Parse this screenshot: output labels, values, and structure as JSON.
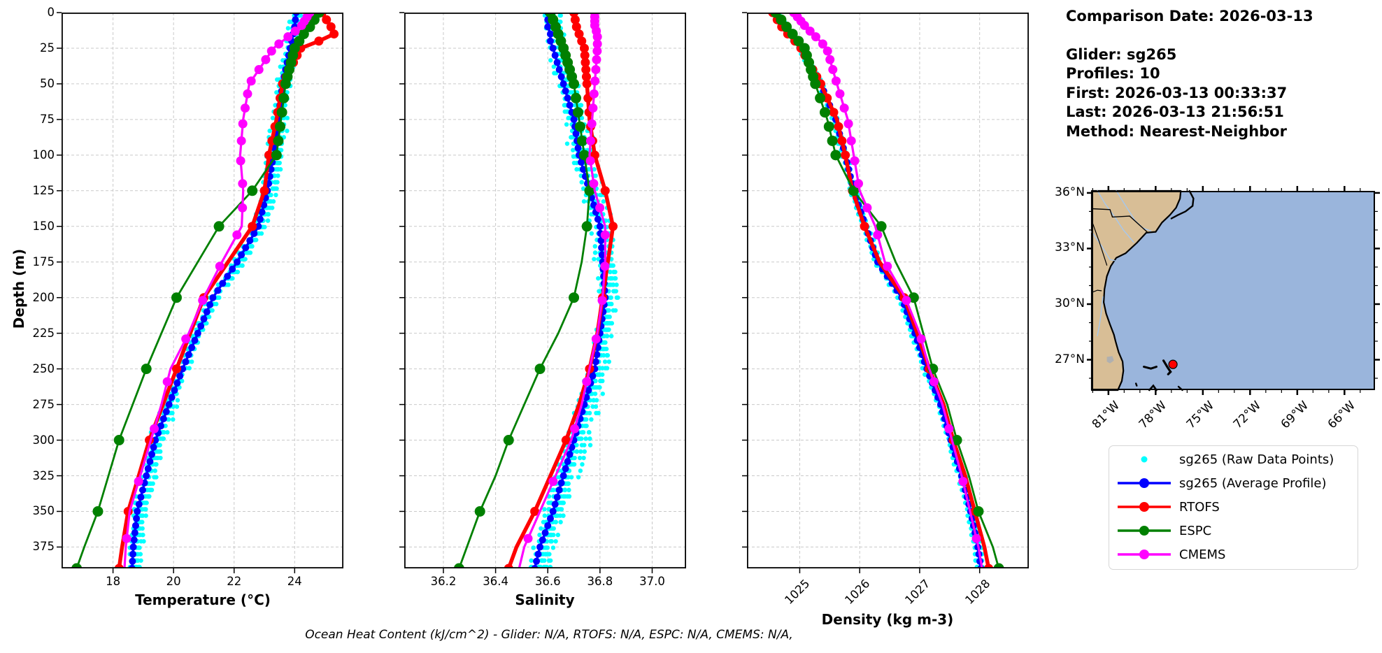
{
  "info": {
    "title": "Comparison Date: 2026-03-13",
    "lines": [
      "Glider: sg265",
      "Profiles: 10",
      "First: 2026-03-13 00:33:37",
      "Last: 2026-03-13 21:56:51",
      "Method: Nearest-Neighbor"
    ]
  },
  "footer": "Ocean Heat Content (kJ/cm^2) - Glider: N/A,  RTOFS: N/A,  ESPC: N/A,  CMEMS: N/A,",
  "legend": {
    "items": [
      {
        "label": "sg265 (Raw Data Points)",
        "color": "#00ffff",
        "line": false,
        "marker_r": 4.5
      },
      {
        "label": "sg265 (Average Profile)",
        "color": "#0000ff",
        "line": true,
        "marker_r": 7
      },
      {
        "label": "RTOFS",
        "color": "#ff0000",
        "line": true,
        "marker_r": 7
      },
      {
        "label": "ESPC",
        "color": "#008000",
        "line": true,
        "marker_r": 7
      },
      {
        "label": "CMEMS",
        "color": "#ff00ff",
        "line": true,
        "marker_r": 7
      }
    ]
  },
  "map": {
    "lat_ticks": [
      {
        "v": 36,
        "label": "36°N"
      },
      {
        "v": 33,
        "label": "33°N"
      },
      {
        "v": 30,
        "label": "30°N"
      },
      {
        "v": 27,
        "label": "27°N"
      }
    ],
    "lon_ticks": [
      {
        "v": -81,
        "label": "81°W"
      },
      {
        "v": -78,
        "label": "78°W"
      },
      {
        "v": -75,
        "label": "75°W"
      },
      {
        "v": -72,
        "label": "72°W"
      },
      {
        "v": -69,
        "label": "69°W"
      },
      {
        "v": -66,
        "label": "66°W"
      }
    ],
    "lon_lim": [
      -82.06,
      -64.06
    ],
    "lat_lim": [
      25.36,
      36.11
    ],
    "marker": {
      "lon": -76.9,
      "lat": 26.75,
      "color": "#ff0000"
    },
    "land_color": "#d8be96",
    "ocean_color": "#9ab5dc",
    "river_color": "#a6c8ee",
    "lake_color": "#b0b0b0"
  },
  "chart_data": {
    "type": "line",
    "subtype": "vertical-profiles",
    "grid": true,
    "depth_axis": {
      "label": "Depth (m)",
      "lim": [
        0,
        390
      ],
      "ticks": [
        0,
        25,
        50,
        75,
        100,
        125,
        150,
        175,
        200,
        225,
        250,
        275,
        300,
        325,
        350,
        375
      ]
    },
    "series_meta": [
      {
        "id": "raw",
        "name": "sg265 (Raw Data Points)",
        "color": "#00ffff",
        "style": "scatter"
      },
      {
        "id": "avg",
        "name": "sg265 (Average Profile)",
        "color": "#0000ff",
        "style": "line-markers",
        "line_w": 3.5,
        "marker_r": 5,
        "marker_step": 5
      },
      {
        "id": "rtofs",
        "name": "RTOFS",
        "color": "#ff0000",
        "style": "line-markers",
        "line_w": 5.5,
        "marker_r": 6.5,
        "marker_depths": [
          0,
          5,
          10,
          15,
          20,
          25,
          30,
          35,
          40,
          45,
          50,
          60,
          70,
          80,
          90,
          100,
          125,
          150,
          200,
          250,
          300,
          350,
          390
        ]
      },
      {
        "id": "espc",
        "name": "ESPC",
        "color": "#008000",
        "style": "line-markers",
        "line_w": 2.8,
        "marker_r": 7.5,
        "marker_depths": [
          0,
          5,
          10,
          15,
          20,
          25,
          30,
          35,
          40,
          45,
          50,
          60,
          70,
          80,
          90,
          100,
          125,
          150,
          200,
          250,
          300,
          350,
          390
        ]
      },
      {
        "id": "cmems",
        "name": "CMEMS",
        "color": "#ff00ff",
        "style": "line-markers",
        "line_w": 3.2,
        "marker_r": 6.5,
        "marker_depths": [
          0,
          3,
          6,
          9,
          13,
          17,
          22,
          27,
          33,
          40,
          48,
          57,
          67,
          78,
          90,
          104,
          120,
          137,
          156,
          178,
          202,
          229,
          259,
          292,
          329,
          369
        ]
      }
    ],
    "depths": [
      0,
      10,
      15,
      20,
      25,
      50,
      75,
      100,
      125,
      150,
      175,
      200,
      225,
      250,
      275,
      300,
      325,
      350,
      375,
      390
    ],
    "panels": [
      {
        "id": "temperature",
        "xlabel": "Temperature (°C)",
        "xlim": [
          16.3,
          25.61
        ],
        "xticks": [
          18,
          20,
          22,
          24
        ],
        "xtick_labels": [
          "18",
          "20",
          "22",
          "24"
        ],
        "rotate_xticks": false,
        "values": {
          "avg": [
            24.05,
            24.0,
            23.95,
            23.9,
            23.85,
            23.6,
            23.45,
            23.3,
            23.1,
            22.8,
            22.1,
            21.3,
            20.8,
            20.3,
            19.85,
            19.4,
            19.1,
            18.8,
            18.67,
            18.63
          ],
          "rtofs": [
            24.9,
            25.2,
            25.3,
            24.8,
            24.2,
            23.6,
            23.4,
            23.15,
            23.0,
            22.6,
            21.8,
            21.0,
            20.55,
            20.1,
            19.65,
            19.2,
            18.85,
            18.5,
            18.3,
            18.2
          ],
          "espc": [
            24.8,
            24.5,
            24.3,
            24.15,
            24.0,
            23.7,
            23.55,
            23.4,
            22.6,
            21.5,
            20.8,
            20.1,
            19.6,
            19.1,
            18.65,
            18.2,
            17.85,
            17.5,
            17.05,
            16.8
          ],
          "cmems": [
            24.5,
            24.2,
            23.9,
            23.6,
            23.3,
            22.5,
            22.3,
            22.2,
            22.3,
            22.25,
            21.6,
            21.0,
            20.5,
            19.9,
            19.6,
            19.25,
            18.9,
            18.55,
            18.42,
            18.38
          ]
        },
        "raw_scatter": {
          "profiles": 10,
          "spread": 0.3,
          "bias": 0.06
        }
      },
      {
        "id": "salinity",
        "xlabel": "Salinity",
        "xlim": [
          36.05,
          37.13
        ],
        "xticks": [
          36.2,
          36.4,
          36.6,
          36.8,
          37.0
        ],
        "xtick_labels": [
          "36.2",
          "36.4",
          "36.6",
          "36.8",
          "37.0"
        ],
        "rotate_xticks": false,
        "values": {
          "avg": [
            36.6,
            36.6,
            36.61,
            36.61,
            36.62,
            36.66,
            36.7,
            36.72,
            36.76,
            36.8,
            36.81,
            36.82,
            36.8,
            36.78,
            36.74,
            36.7,
            36.66,
            36.62,
            36.57,
            36.55
          ],
          "rtofs": [
            36.7,
            36.71,
            36.72,
            36.73,
            36.74,
            36.75,
            36.76,
            36.78,
            36.82,
            36.85,
            36.83,
            36.81,
            36.79,
            36.76,
            36.72,
            36.67,
            36.61,
            36.55,
            36.48,
            36.45
          ],
          "espc": [
            36.61,
            36.63,
            36.64,
            36.65,
            36.66,
            36.7,
            36.72,
            36.74,
            36.76,
            36.75,
            36.73,
            36.7,
            36.64,
            36.57,
            36.51,
            36.45,
            36.4,
            36.34,
            36.29,
            36.26
          ],
          "cmems": [
            36.78,
            36.78,
            36.79,
            36.79,
            36.79,
            36.78,
            36.77,
            36.76,
            36.78,
            36.82,
            36.82,
            36.81,
            36.79,
            36.76,
            36.73,
            36.69,
            36.63,
            36.57,
            36.51,
            36.49
          ]
        },
        "raw_scatter": {
          "profiles": 10,
          "spread": 0.055,
          "bias": 0.015
        }
      },
      {
        "id": "density",
        "xlabel": "Density (kg m-3)",
        "xlim": [
          1024.12,
          1028.82
        ],
        "xticks": [
          1025,
          1026,
          1027,
          1028
        ],
        "xtick_labels": [
          "1025",
          "1026",
          "1027",
          "1028"
        ],
        "rotate_xticks": true,
        "values": {
          "avg": [
            1024.6,
            1024.75,
            1024.85,
            1024.95,
            1025.05,
            1025.35,
            1025.6,
            1025.76,
            1025.9,
            1026.1,
            1026.3,
            1026.7,
            1026.92,
            1027.12,
            1027.35,
            1027.52,
            1027.7,
            1027.85,
            1027.97,
            1028.02
          ],
          "rtofs": [
            1024.55,
            1024.7,
            1024.8,
            1024.92,
            1025.02,
            1025.35,
            1025.62,
            1025.76,
            1025.88,
            1026.08,
            1026.33,
            1026.74,
            1026.96,
            1027.16,
            1027.4,
            1027.56,
            1027.76,
            1027.92,
            1028.08,
            1028.15
          ],
          "espc": [
            1024.6,
            1024.78,
            1024.88,
            1024.98,
            1025.08,
            1025.26,
            1025.46,
            1025.6,
            1025.9,
            1026.36,
            1026.6,
            1026.9,
            1027.06,
            1027.22,
            1027.46,
            1027.62,
            1027.82,
            1027.98,
            1028.22,
            1028.32
          ],
          "cmems": [
            1024.9,
            1025.1,
            1025.22,
            1025.34,
            1025.45,
            1025.62,
            1025.8,
            1025.9,
            1026.0,
            1026.26,
            1026.42,
            1026.76,
            1027.0,
            1027.16,
            1027.38,
            1027.54,
            1027.7,
            1027.84,
            1027.98,
            1028.04
          ]
        },
        "raw_scatter": {
          "profiles": 10,
          "spread": 0.075,
          "bias": -0.01
        }
      }
    ]
  }
}
